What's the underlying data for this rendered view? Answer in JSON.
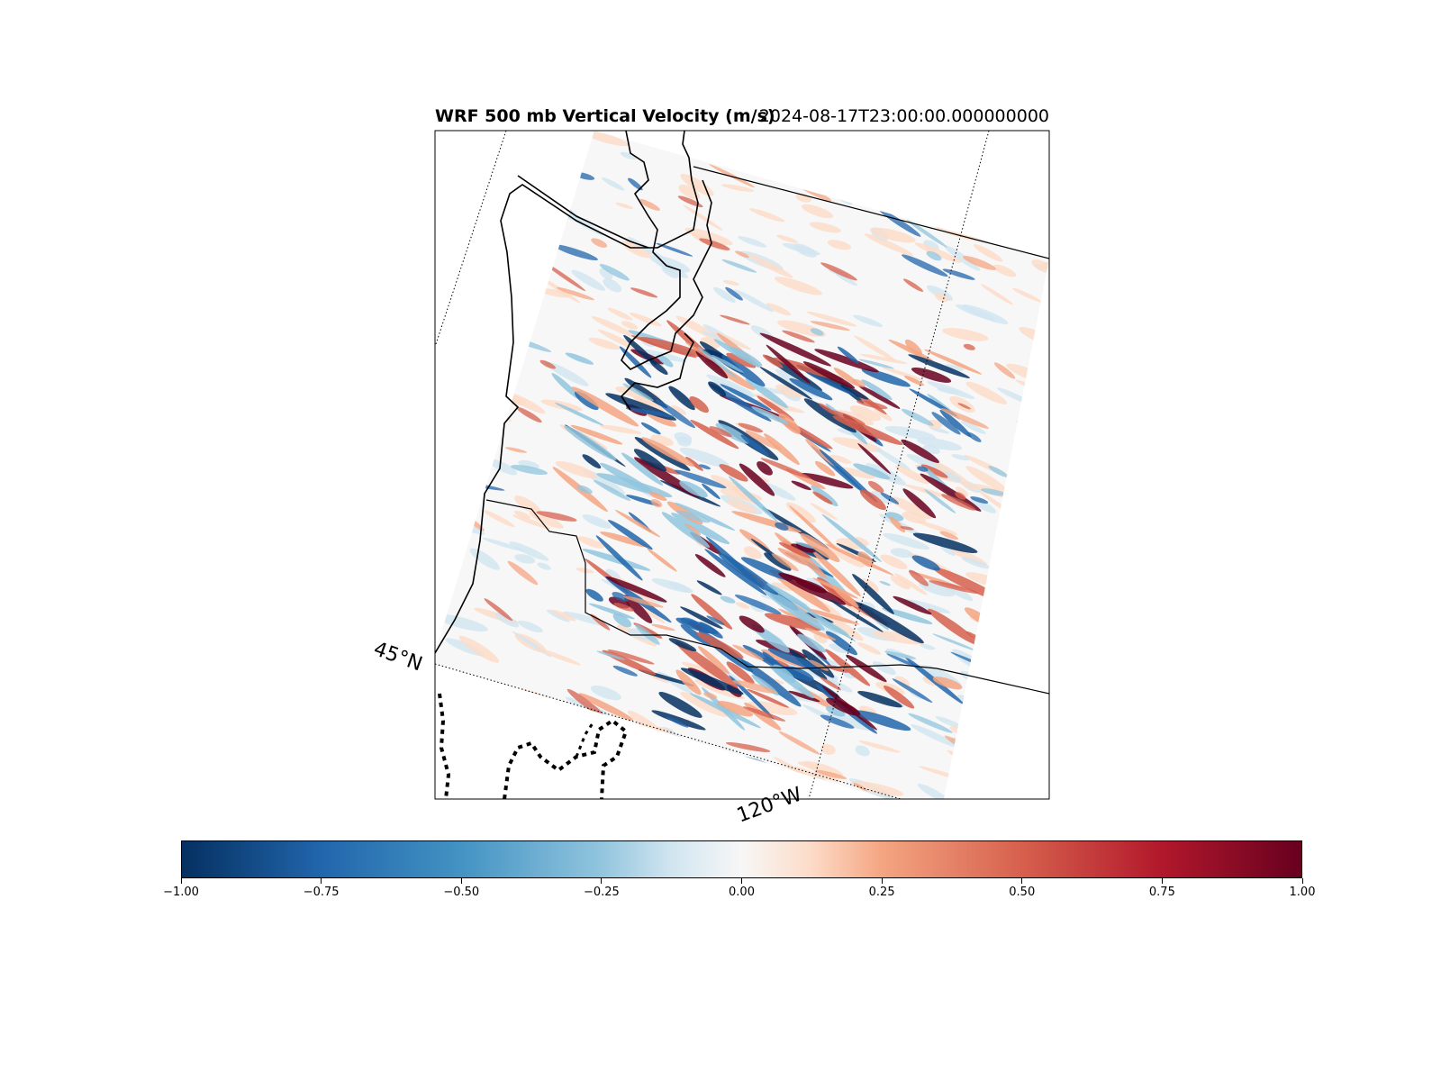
{
  "title": {
    "left": "WRF 500 mb Vertical Velocity (m/s)",
    "right": "2024-08-17T23:00:00.000000000"
  },
  "gridlines": {
    "lat_label": "45°N",
    "lon_label": "120°W"
  },
  "colorbar": {
    "cmap": "RdBu_r",
    "range": [
      -1.0,
      1.0
    ],
    "ticks": [
      {
        "value": -1.0,
        "label": "−1.00"
      },
      {
        "value": -0.75,
        "label": "−0.75"
      },
      {
        "value": -0.5,
        "label": "−0.50"
      },
      {
        "value": -0.25,
        "label": "−0.25"
      },
      {
        "value": 0.0,
        "label": "0.00"
      },
      {
        "value": 0.25,
        "label": "0.25"
      },
      {
        "value": 0.5,
        "label": "0.50"
      },
      {
        "value": 0.75,
        "label": "0.75"
      },
      {
        "value": 1.0,
        "label": "1.00"
      }
    ]
  },
  "colors": {
    "strong_negative": "#053061",
    "negative": "#2166ac",
    "neutral": "#f7f7f7",
    "positive": "#d6604d",
    "strong_positive": "#67001f"
  }
}
